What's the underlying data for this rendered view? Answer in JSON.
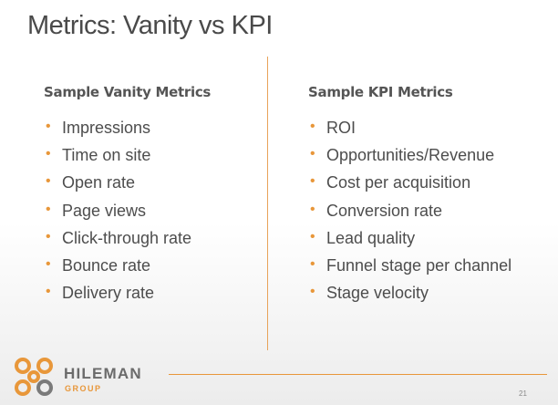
{
  "title": "Metrics: Vanity vs KPI",
  "columns": [
    {
      "heading": "Sample Vanity Metrics",
      "items": [
        "Impressions",
        "Time on site",
        "Open rate",
        "Page views",
        "Click-through rate",
        "Bounce rate",
        "Delivery rate"
      ]
    },
    {
      "heading": "Sample KPI Metrics",
      "items": [
        "ROI",
        "Opportunities/Revenue",
        "Cost per acquisition",
        "Conversion rate",
        "Lead quality",
        "Funnel stage per channel",
        "Stage velocity"
      ]
    }
  ],
  "logo": {
    "name": "HILEMAN",
    "sub": "GROUP"
  },
  "page_number": "21"
}
